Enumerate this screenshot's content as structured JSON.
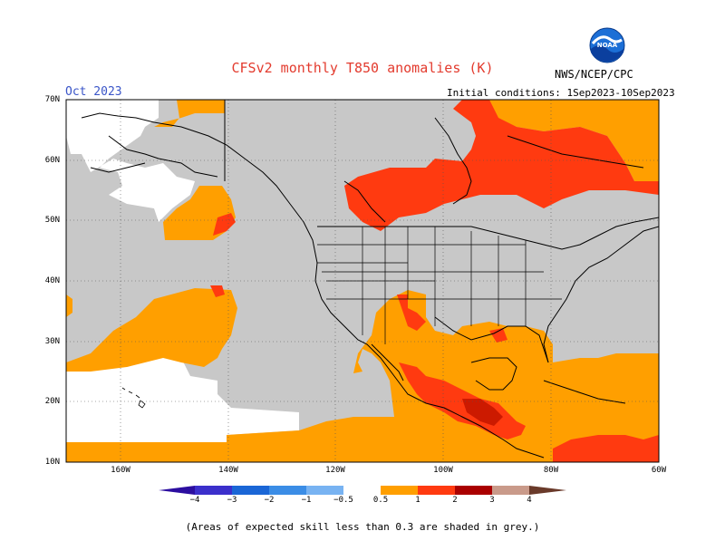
{
  "title": "CFSv2 monthly T850 anomalies (K)",
  "month": "Oct 2023",
  "initial_conditions": "Initial conditions: 1Sep2023-10Sep2023",
  "agency": "NWS/NCEP/CPC",
  "logo_text": "NOAA",
  "footnote": "(Areas of expected skill less than 0.3 are shaded in grey.)",
  "lat_labels": [
    "70N",
    "60N",
    "50N",
    "40N",
    "30N",
    "20N",
    "10N"
  ],
  "lon_labels": [
    "160W",
    "140W",
    "120W",
    "100W",
    "80W",
    "60W"
  ],
  "colorbar": {
    "ticks": [
      "−4",
      "−3",
      "−2",
      "−1",
      "−0.5",
      "0.5",
      "1",
      "2",
      "3",
      "4"
    ],
    "colors": [
      "#2c0ea0",
      "#3b2fcb",
      "#1a66d6",
      "#3b8de6",
      "#78b3f2",
      "#ffffff",
      "#ff9f00",
      "#ff3a10",
      "#cc0000",
      "#8c0000",
      "#c99a8a",
      "#6a3a2a"
    ]
  },
  "colors": {
    "grey": "#c8c8c8",
    "orange": "#ff9f00",
    "red": "#ff3a10",
    "darkred": "#cc1a00",
    "title": "#e33b2e",
    "month": "#3a55c8"
  }
}
